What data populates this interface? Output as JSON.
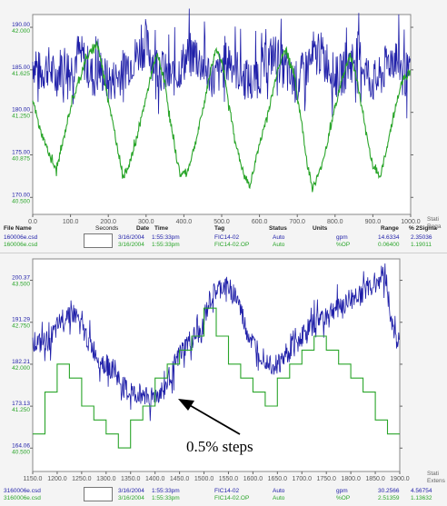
{
  "chart_data": [
    {
      "type": "line",
      "x_ticks": [
        "0.0",
        "100.0",
        "200.0",
        "300.0",
        "400.0",
        "500.0",
        "600.0",
        "700.0",
        "800.0",
        "900.0",
        "1000.0"
      ],
      "xlim": [
        0,
        1000
      ],
      "y_ticks_primary": [
        "190.00",
        "185.00",
        "180.00",
        "175.00",
        "170.00"
      ],
      "y_ticks_secondary": [
        "42.000",
        "41.625",
        "41.250",
        "40.875",
        "40.500"
      ],
      "ylim_primary": [
        168,
        191.5
      ],
      "ylim_secondary": [
        40.38,
        42.09
      ],
      "grid": false,
      "series": [
        {
          "color": "#1e1ea8",
          "axis": "primary",
          "x": [
            0,
            20,
            40,
            60,
            80,
            100,
            120,
            140,
            160,
            180,
            200,
            220,
            240,
            260,
            280,
            300,
            320,
            340,
            360,
            380,
            400,
            420,
            440,
            460,
            480,
            500,
            520,
            540,
            560,
            580,
            600,
            620,
            640,
            660,
            680,
            700,
            720,
            740,
            760,
            780,
            800,
            820,
            840,
            860,
            880,
            900,
            920,
            940,
            960,
            980,
            1000
          ],
          "y": [
            186,
            184.5,
            185.5,
            184,
            186,
            185,
            187,
            186,
            184,
            185,
            183.5,
            184,
            185,
            186,
            187,
            188,
            186,
            185,
            184,
            184.5,
            186,
            187,
            186,
            185,
            184,
            185,
            186.5,
            185,
            184,
            183.5,
            184.5,
            186,
            187,
            185.5,
            184,
            183.5,
            185,
            186,
            187,
            186,
            184,
            184.5,
            186,
            187,
            185,
            183.5,
            184,
            186,
            186.5,
            185,
            184
          ]
        },
        {
          "color": "#2aa52a",
          "axis": "secondary",
          "x": [
            0,
            20,
            40,
            62,
            80,
            100,
            120,
            140,
            170,
            190,
            215,
            240,
            260,
            280,
            298,
            315,
            330,
            350,
            370,
            390,
            410,
            435,
            455,
            470,
            485,
            500,
            520,
            540,
            560,
            575,
            590,
            610,
            630,
            650,
            670,
            690,
            710,
            725,
            740,
            760,
            780,
            800,
            820,
            840,
            860,
            880,
            900,
            920,
            940,
            960,
            980,
            1000
          ],
          "y": [
            41.36,
            41.1,
            40.93,
            40.75,
            41.0,
            41.3,
            41.5,
            41.7,
            41.85,
            41.55,
            41.1,
            40.7,
            40.85,
            41.1,
            41.35,
            41.6,
            41.75,
            41.5,
            41.05,
            40.72,
            40.75,
            41.05,
            41.35,
            41.6,
            41.8,
            41.7,
            41.3,
            40.95,
            40.7,
            40.62,
            40.85,
            41.1,
            41.35,
            41.65,
            41.8,
            41.6,
            41.2,
            40.85,
            40.6,
            40.75,
            41.0,
            41.3,
            41.55,
            41.75,
            41.5,
            41.1,
            40.8,
            40.7,
            41.0,
            41.3,
            41.55,
            41.6
          ]
        }
      ]
    },
    {
      "type": "line",
      "x_ticks": [
        "1150.0",
        "1200.0",
        "1250.0",
        "1300.0",
        "1350.0",
        "1400.0",
        "1450.0",
        "1500.0",
        "1550.0",
        "1600.0",
        "1650.0",
        "1700.0",
        "1750.0",
        "1800.0",
        "1850.0",
        "1900.0"
      ],
      "xlim": [
        1150,
        1900
      ],
      "y_ticks_primary": [
        "200.37",
        "191.29",
        "182.21",
        "173.13",
        "164.06"
      ],
      "y_ticks_secondary": [
        "43.500",
        "42.750",
        "42.000",
        "41.250",
        "40.500"
      ],
      "ylim_primary": [
        159,
        205
      ],
      "ylim_secondary": [
        40.08,
        43.88
      ],
      "grid": false,
      "series": [
        {
          "color": "#1e1ea8",
          "axis": "primary",
          "x": [
            1150,
            1165,
            1180,
            1195,
            1210,
            1225,
            1240,
            1255,
            1270,
            1285,
            1300,
            1315,
            1330,
            1345,
            1360,
            1375,
            1390,
            1405,
            1420,
            1435,
            1450,
            1465,
            1480,
            1495,
            1510,
            1525,
            1540,
            1555,
            1570,
            1585,
            1600,
            1615,
            1630,
            1645,
            1660,
            1675,
            1690,
            1705,
            1720,
            1735,
            1750,
            1765,
            1780,
            1795,
            1810,
            1825,
            1840,
            1855,
            1870,
            1885,
            1900
          ],
          "y": [
            187.5,
            186.5,
            187,
            189,
            192,
            193.5,
            192.5,
            189,
            186,
            183.5,
            182,
            181,
            178,
            176,
            175.5,
            176,
            175,
            175.5,
            177,
            181,
            184,
            186.5,
            188,
            189,
            195.5,
            198,
            199,
            198.5,
            196,
            190,
            186.5,
            185,
            183,
            182,
            183,
            185,
            187,
            189,
            190.5,
            192,
            193,
            194,
            195,
            196,
            197,
            198,
            199,
            200.5,
            202,
            190,
            186.5
          ]
        },
        {
          "color": "#2aa52a",
          "axis": "secondary",
          "x": [
            1150,
            1175,
            1175,
            1200,
            1200,
            1225,
            1225,
            1250,
            1250,
            1275,
            1275,
            1300,
            1300,
            1325,
            1325,
            1350,
            1350,
            1375,
            1375,
            1400,
            1400,
            1425,
            1425,
            1450,
            1450,
            1475,
            1475,
            1500,
            1500,
            1525,
            1525,
            1550,
            1550,
            1575,
            1575,
            1600,
            1600,
            1625,
            1625,
            1650,
            1650,
            1675,
            1675,
            1700,
            1700,
            1725,
            1725,
            1750,
            1750,
            1775,
            1775,
            1800,
            1800,
            1825,
            1825,
            1850,
            1850,
            1875,
            1875,
            1900
          ],
          "y": [
            40.75,
            40.75,
            41.5,
            41.5,
            42,
            42,
            41.75,
            41.75,
            41.25,
            41.25,
            41,
            41,
            40.75,
            40.75,
            40.5,
            40.5,
            41,
            41,
            41.25,
            41.25,
            41.75,
            41.75,
            42,
            42,
            42.25,
            42.25,
            42.5,
            42.5,
            43,
            43,
            42.5,
            42.5,
            42,
            42,
            41.75,
            41.75,
            41.5,
            41.5,
            41.25,
            41.25,
            41.75,
            41.75,
            42,
            42,
            42.25,
            42.25,
            42.5,
            42.5,
            42.25,
            42.25,
            42,
            42,
            41.75,
            41.75,
            41.5,
            41.5,
            41,
            41,
            40.75,
            40.75
          ]
        }
      ]
    }
  ],
  "top_table": {
    "headers": {
      "file_name": "File Name",
      "seconds": "Seconds",
      "date": "Date",
      "time": "Time",
      "tag": "Tag",
      "status": "Status",
      "units": "Units",
      "range": "Range",
      "sigma": "% 2Sigma"
    },
    "side": [
      "Stati",
      "Rega"
    ],
    "rows": [
      {
        "file": "160006e.csd",
        "date": "3/16/2004",
        "time": "1:55:33pm",
        "tag": "FIC14-02",
        "status": "Auto",
        "units": "gpm",
        "range": "14.6334",
        "sigma": "2.35036"
      },
      {
        "file": "160006e.csd",
        "date": "3/16/2004",
        "time": "1:55:33pm",
        "tag": "FIC14-02.OP",
        "status": "Auto",
        "units": "%OP",
        "range": "0.06400",
        "sigma": "1.19011"
      }
    ]
  },
  "bottom_table": {
    "side": [
      "Stati",
      "Extens"
    ],
    "rows": [
      {
        "file": "3160006e.csd",
        "date": "3/16/2004",
        "time": "1:55:33pm",
        "tag": "FIC14-02",
        "status": "Auto",
        "units": "gpm",
        "range": "30.2566",
        "sigma": "4.56754"
      },
      {
        "file": "3160006e.csd",
        "date": "3/16/2004",
        "time": "1:55:33pm",
        "tag": "FIC14-02.OP",
        "status": "Auto",
        "units": "%OP",
        "range": "2.51359",
        "sigma": "1.13632"
      }
    ]
  },
  "annotation": {
    "text": "0.5% steps"
  }
}
